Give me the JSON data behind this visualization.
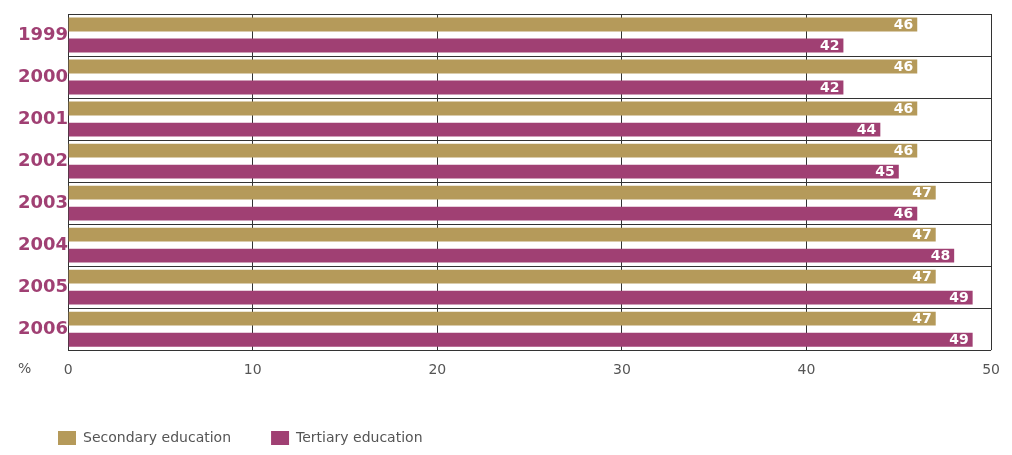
{
  "chart_data": {
    "type": "bar",
    "orientation": "horizontal",
    "xlabel": "%",
    "categories": [
      "1999",
      "2000",
      "2001",
      "2002",
      "2003",
      "2004",
      "2005",
      "2006"
    ],
    "series": [
      {
        "name": "Secondary education",
        "color": "#b59a5a",
        "values": [
          46,
          46,
          46,
          46,
          47,
          47,
          47,
          47
        ]
      },
      {
        "name": "Tertiary education",
        "color": "#a04073",
        "values": [
          42,
          42,
          44,
          45,
          46,
          48,
          49,
          49
        ]
      }
    ],
    "xlim": [
      0,
      50
    ],
    "xticks": [
      0,
      10,
      20,
      30,
      40,
      50
    ],
    "grid": true,
    "legend": "bottom left",
    "data_labels": true
  }
}
